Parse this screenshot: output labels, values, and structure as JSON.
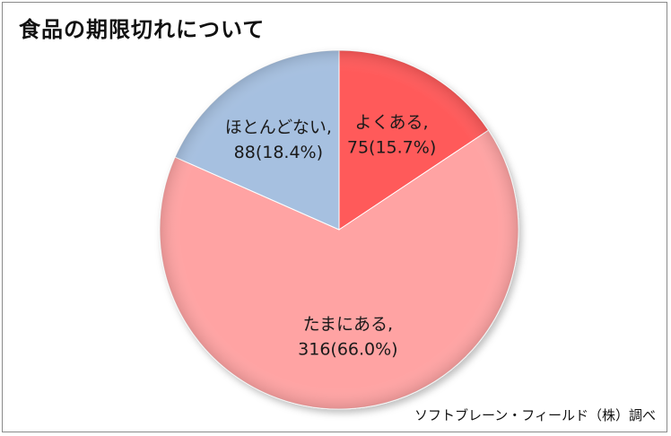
{
  "chart_data": {
    "type": "pie",
    "title": "食品の期限切れについて",
    "source": "ソフトブレーン・フィールド（株）調べ",
    "slices": [
      {
        "label": "よくある,",
        "value": 75,
        "percent": "15.7%",
        "text": "75(15.7%)",
        "color": "#ff5a5a"
      },
      {
        "label": "たまにある,",
        "value": 316,
        "percent": "66.0%",
        "text": "316(66.0%)",
        "color": "#ffa3a3"
      },
      {
        "label": "ほとんどない,",
        "value": 88,
        "percent": "18.4%",
        "text": "88(18.4%)",
        "color": "#a6c0e0"
      }
    ]
  }
}
